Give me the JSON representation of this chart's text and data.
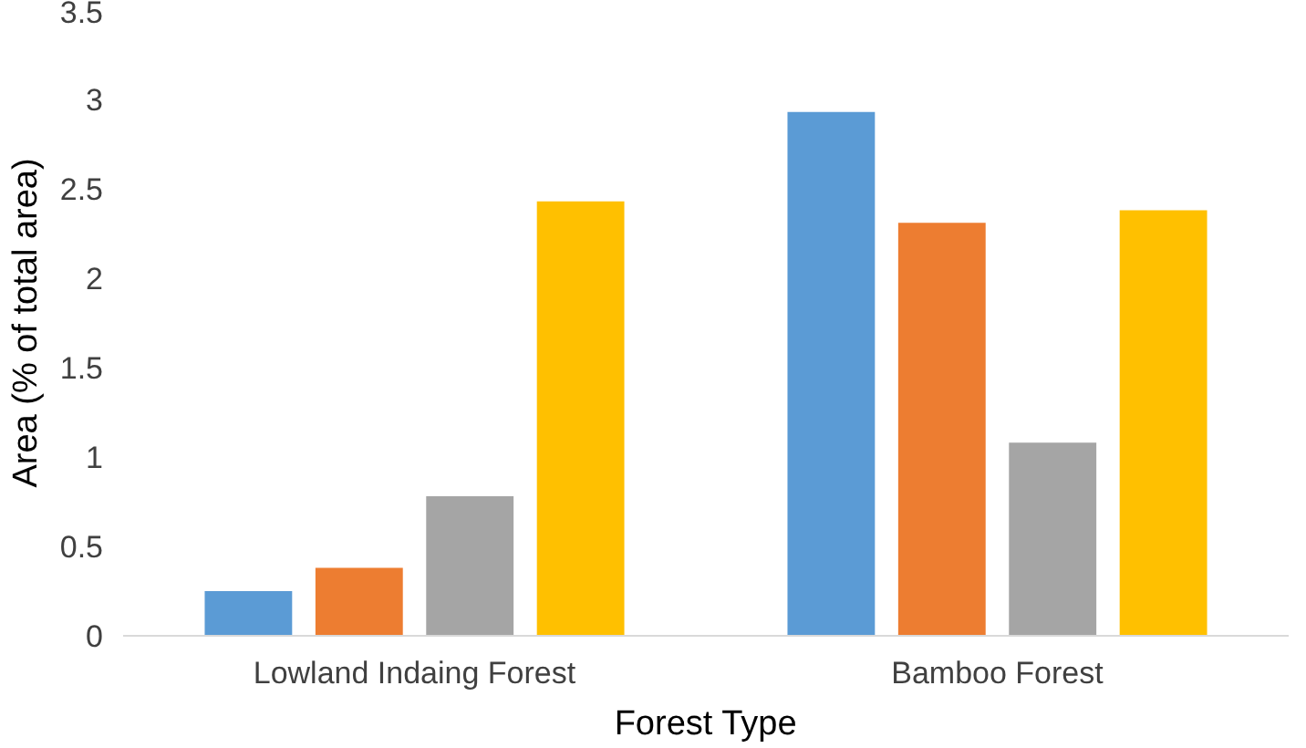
{
  "chart_data": {
    "type": "bar",
    "xlabel": "Forest Type",
    "ylabel": "Area (% of total area)",
    "categories": [
      "Lowland Indaing Forest",
      "Bamboo Forest"
    ],
    "series": [
      {
        "color": "#5b9bd5",
        "values": [
          0.25,
          2.93
        ]
      },
      {
        "color": "#ed7d31",
        "values": [
          0.38,
          2.31
        ]
      },
      {
        "color": "#a5a5a5",
        "values": [
          0.78,
          1.08
        ]
      },
      {
        "color": "#ffc000",
        "values": [
          2.43,
          2.38
        ]
      }
    ],
    "ylim": [
      0,
      3.5
    ],
    "yticks": [
      0,
      0.5,
      1,
      1.5,
      2,
      2.5,
      3,
      3.5
    ],
    "grid": false
  }
}
